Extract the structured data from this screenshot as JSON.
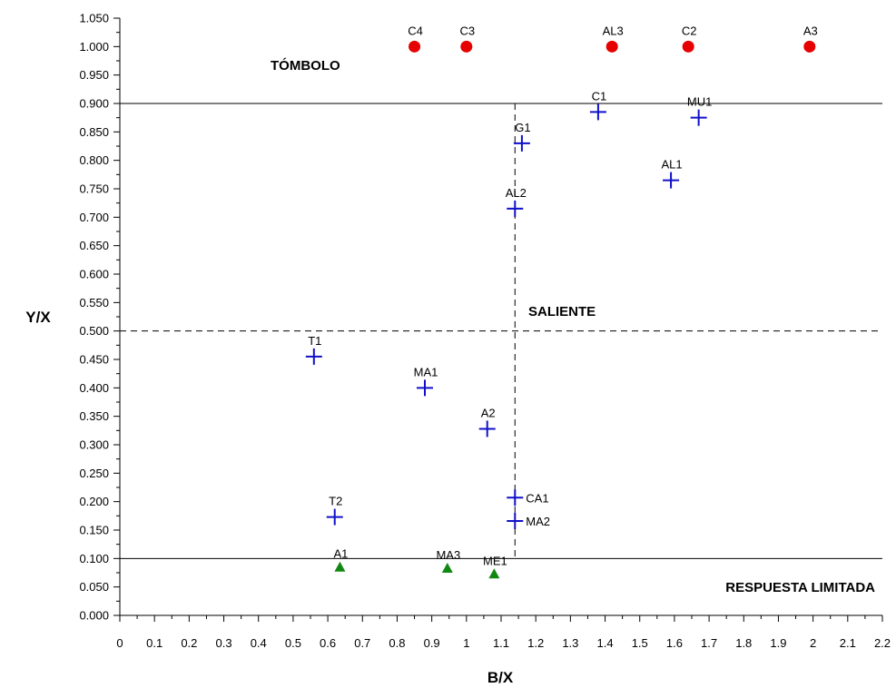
{
  "chart_data": {
    "type": "scatter",
    "xlabel": "B/X",
    "ylabel": "Y/X",
    "xlim": [
      0,
      2.2
    ],
    "ylim": [
      0,
      1.05
    ],
    "x_ticks": [
      "0",
      "0.1",
      "0.2",
      "0.3",
      "0.4",
      "0.5",
      "0.6",
      "0.7",
      "0.8",
      "0.9",
      "1",
      "1.1",
      "1.2",
      "1.3",
      "1.4",
      "1.5",
      "1.6",
      "1.7",
      "1.8",
      "1.9",
      "2",
      "2.1",
      "2.2"
    ],
    "y_ticks": [
      "0.000",
      "0.050",
      "0.100",
      "0.150",
      "0.200",
      "0.250",
      "0.300",
      "0.350",
      "0.400",
      "0.450",
      "0.500",
      "0.550",
      "0.600",
      "0.650",
      "0.700",
      "0.750",
      "0.800",
      "0.850",
      "0.900",
      "0.950",
      "1.000",
      "1.050"
    ],
    "grid": false,
    "region_labels": {
      "tombolo": "TÓMBOLO",
      "saliente": "SALIENTE",
      "respuesta": "RESPUESTA LIMITADA"
    },
    "reference_lines": {
      "horizontal_solid": [
        0.9,
        0.1
      ],
      "horizontal_dashed": [
        0.5
      ],
      "vertical_dashed": [
        1.14
      ]
    },
    "series": [
      {
        "marker": "circle",
        "color": "#e60000",
        "points": [
          {
            "label": "C4",
            "x": 0.85,
            "y": 1.0
          },
          {
            "label": "C3",
            "x": 1.0,
            "y": 1.0
          },
          {
            "label": "AL3",
            "x": 1.42,
            "y": 1.0
          },
          {
            "label": "C2",
            "x": 1.64,
            "y": 1.0
          },
          {
            "label": "A3",
            "x": 1.99,
            "y": 1.0
          }
        ]
      },
      {
        "marker": "cross",
        "color": "#1010c8",
        "points": [
          {
            "label": "C1",
            "x": 1.38,
            "y": 0.885
          },
          {
            "label": "MU1",
            "x": 1.67,
            "y": 0.875
          },
          {
            "label": "G1",
            "x": 1.16,
            "y": 0.83
          },
          {
            "label": "AL1",
            "x": 1.59,
            "y": 0.765
          },
          {
            "label": "AL2",
            "x": 1.14,
            "y": 0.715
          },
          {
            "label": "T1",
            "x": 0.56,
            "y": 0.455
          },
          {
            "label": "MA1",
            "x": 0.88,
            "y": 0.4
          },
          {
            "label": "A2",
            "x": 1.06,
            "y": 0.328
          },
          {
            "label": "CA1",
            "x": 1.14,
            "y": 0.207
          },
          {
            "label": "T2",
            "x": 0.62,
            "y": 0.173
          },
          {
            "label": "MA2",
            "x": 1.14,
            "y": 0.166
          }
        ]
      },
      {
        "marker": "triangle",
        "color": "#118811",
        "points": [
          {
            "label": "A1",
            "x": 0.635,
            "y": 0.085
          },
          {
            "label": "MA3",
            "x": 0.945,
            "y": 0.083
          },
          {
            "label": "ME1",
            "x": 1.08,
            "y": 0.073
          }
        ]
      }
    ]
  }
}
